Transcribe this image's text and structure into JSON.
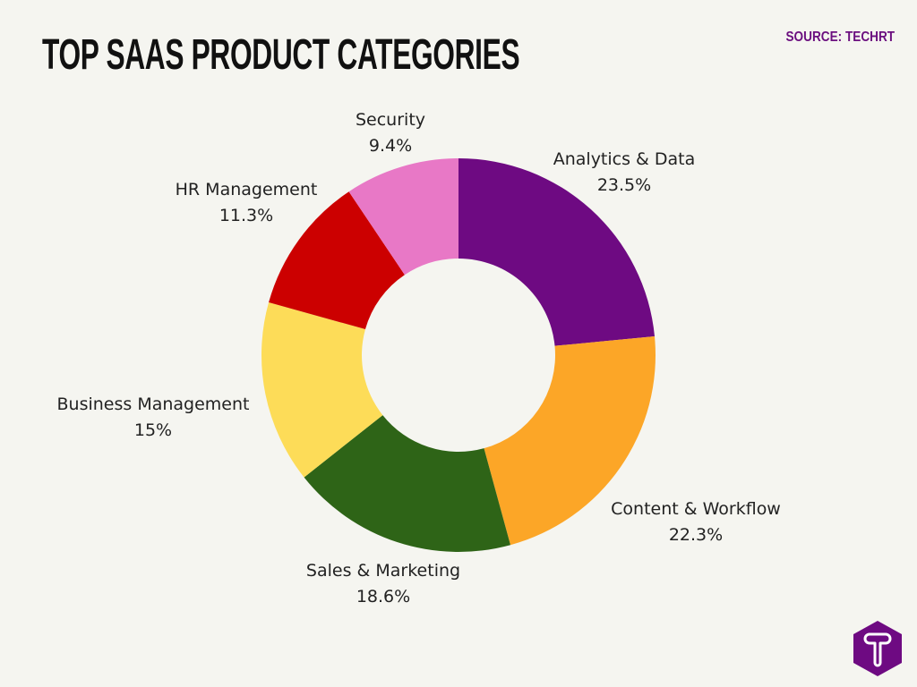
{
  "header": {
    "title": "TOP SAAS PRODUCT CATEGORIES",
    "source": "SOURCE: TECHRT"
  },
  "chart_data": {
    "type": "pie",
    "variant": "donut",
    "title": "TOP SAAS PRODUCT CATEGORIES",
    "start": "top",
    "direction": "clockwise",
    "legend": "none",
    "categories": [
      "Analytics & Data",
      "Content & Workflow",
      "Sales & Marketing",
      "Business Management",
      "HR Management",
      "Security"
    ],
    "values": [
      23.5,
      22.3,
      18.6,
      15,
      11.3,
      9.4
    ],
    "data_labels": [
      "23.5%",
      "22.3%",
      "18.6%",
      "15%",
      "11.3%",
      "9.4%"
    ],
    "colors": [
      "#6e0a82",
      "#fca627",
      "#2e6417",
      "#fddc58",
      "#cc0000",
      "#e878c6"
    ]
  },
  "logo": {
    "letter": "T",
    "color": "#6e0a82"
  }
}
